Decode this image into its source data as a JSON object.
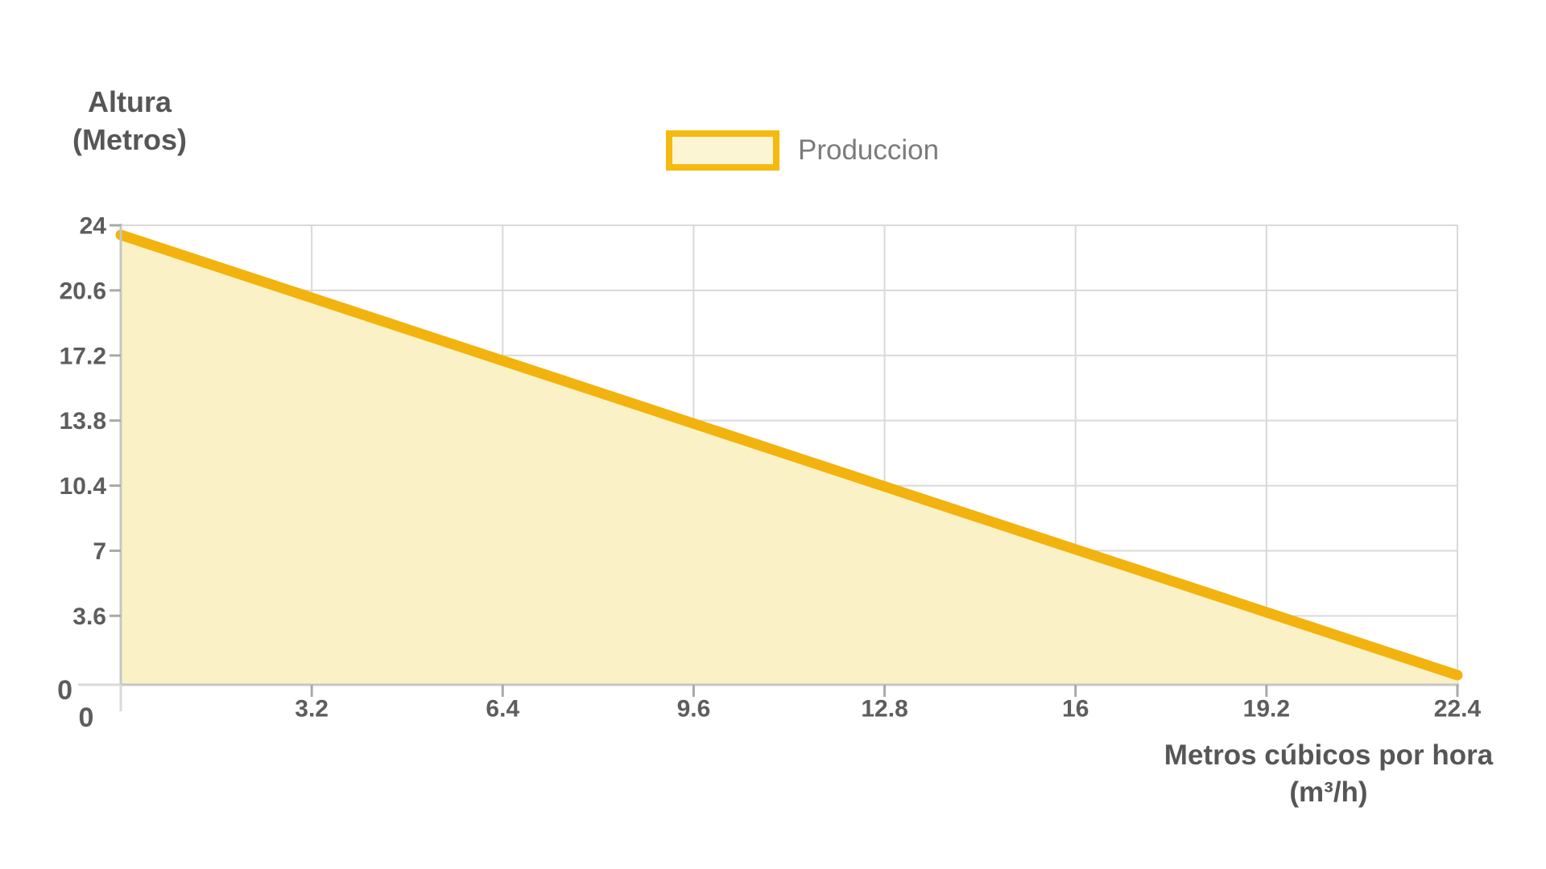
{
  "chart_data": {
    "type": "area",
    "title": "",
    "series": [
      {
        "name": "Produccion",
        "points": [
          [
            0,
            23.5
          ],
          [
            22.4,
            0.5
          ]
        ]
      }
    ],
    "xlabel": "Metros cúbicos por hora",
    "xlabel_unit": "(m³/h)",
    "ylabel_line1": "Altura",
    "ylabel_line2": "(Metros)",
    "xlim": [
      0,
      22.4
    ],
    "ylim": [
      0,
      24
    ],
    "x_ticks": [
      0,
      3.2,
      6.4,
      9.6,
      12.8,
      16,
      19.2,
      22.4
    ],
    "x_tick_labels": [
      "0",
      "3.2",
      "6.4",
      "9.6",
      "12.8",
      "16",
      "19.2",
      "22.4"
    ],
    "y_ticks": [
      0,
      3.6,
      7,
      10.4,
      13.8,
      17.2,
      20.6,
      24
    ],
    "y_tick_labels": [
      "0",
      "3.6",
      "7",
      "10.4",
      "13.8",
      "17.2",
      "20.6",
      "24"
    ],
    "grid": true,
    "legend": {
      "label": "Produccion",
      "position": "top-center"
    },
    "colors": {
      "line": "#F2B30F",
      "area_fill": "#FAF2C6",
      "legend_swatch_fill": "#FCF5D3",
      "legend_swatch_border": "#F5B90F",
      "grid": "#D9D9D9",
      "axis": "#C6C6C6",
      "tick": "#A9A9A9",
      "tick_label_text": "#5D5D5D",
      "axis_title_text": "#565656",
      "legend_text": "#7B7B7B"
    }
  }
}
